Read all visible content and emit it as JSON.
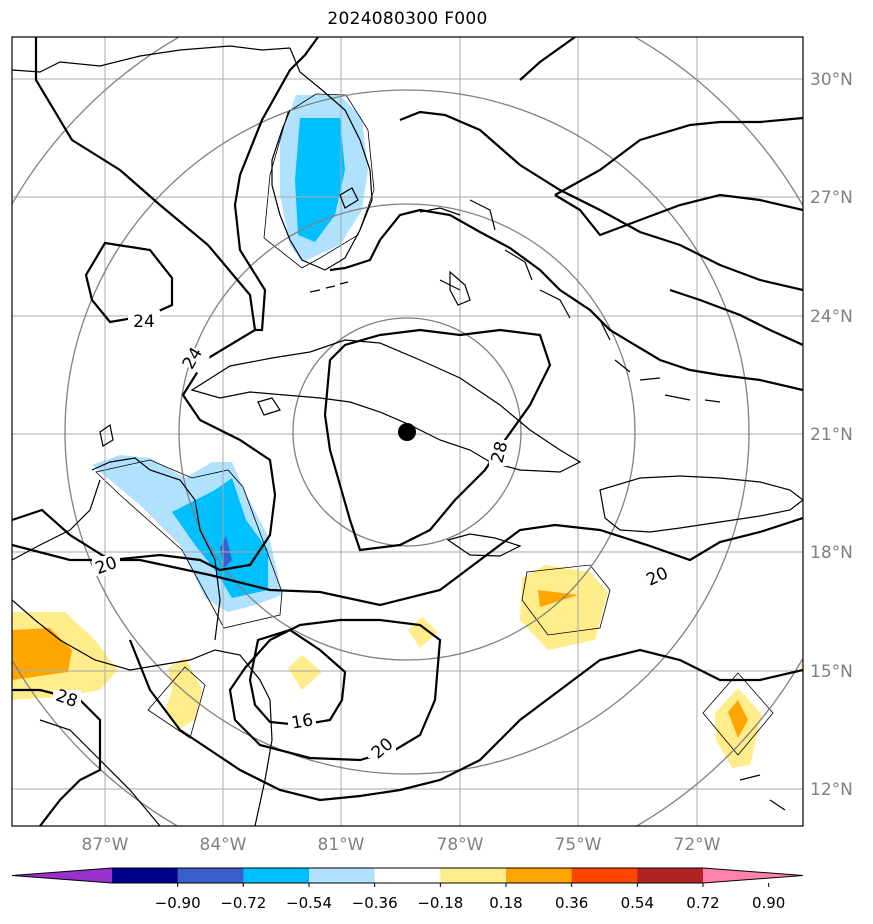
{
  "title": "2024080300 F000",
  "lat_labels": [
    "30°N",
    "27°N",
    "24°N",
    "21°N",
    "18°N",
    "15°N",
    "12°N"
  ],
  "lon_labels": [
    "87°W",
    "84°W",
    "81°W",
    "78°W",
    "75°W",
    "72°W"
  ],
  "contour_labels": [
    "24",
    "24",
    "28",
    "20",
    "20",
    "28",
    "16",
    "20"
  ],
  "colorbar": {
    "colors": [
      "#9932cc",
      "#00008b",
      "#3a5fcd",
      "#00bfff",
      "#b0e2ff",
      "#ffffff",
      "#ffec8b",
      "#ffa500",
      "#ff4500",
      "#b22222",
      "#ff82ab"
    ],
    "tick_labels": [
      "−0.90",
      "−0.72",
      "−0.54",
      "−0.36",
      "−0.18",
      "0.18",
      "0.36",
      "0.54",
      "0.72",
      "0.90"
    ]
  }
}
